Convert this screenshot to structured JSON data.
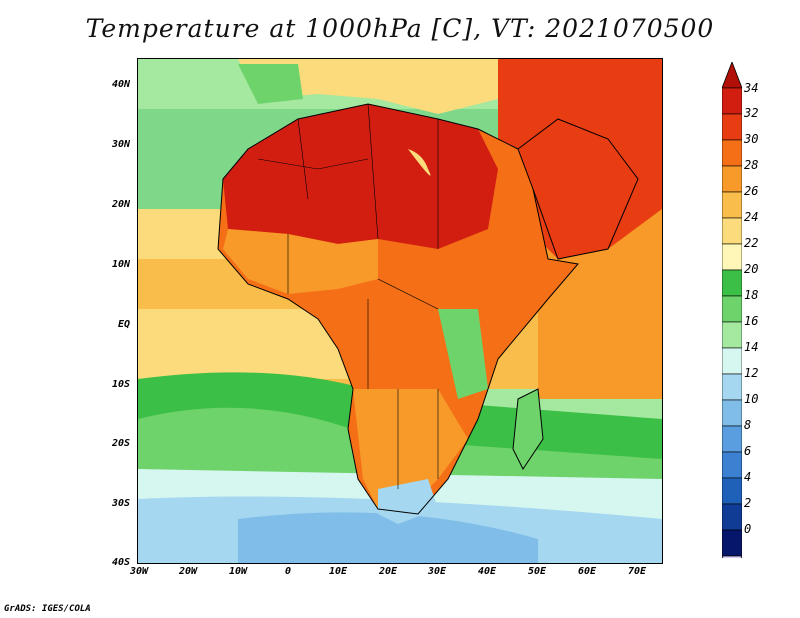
{
  "title": "Temperature at 1000hPa [C], VT: 2021070500",
  "credit": "GrADS: IGES/COLA",
  "lat_labels": [
    "40N",
    "30N",
    "20N",
    "10N",
    "EQ",
    "10S",
    "20S",
    "30S",
    "40S"
  ],
  "lon_labels": [
    "30W",
    "20W",
    "10W",
    "0",
    "10E",
    "20E",
    "30E",
    "40E",
    "50E",
    "60E",
    "70E"
  ],
  "colorbar": {
    "labels": [
      "34",
      "32",
      "30",
      "28",
      "26",
      "24",
      "22",
      "20",
      "18",
      "16",
      "14",
      "12",
      "10",
      "8",
      "6",
      "4",
      "2",
      "0"
    ],
    "colors": [
      "#d21e10",
      "#e83c12",
      "#f46f16",
      "#f89a2a",
      "#f9bd4b",
      "#fbdb7c",
      "#fff7b8",
      "#3cbf46",
      "#6fd36b",
      "#a5e8a0",
      "#d6f6f0",
      "#a5d8f0",
      "#80bde8",
      "#5a9ee0",
      "#3c80d2",
      "#1f60b8",
      "#103c96",
      "#06166a"
    ],
    "top_triangle_color": "#b01008",
    "bottom_triangle_color": "#d8d0f4"
  },
  "map": {
    "ocean_bands": [
      {
        "label": "north-atlantic",
        "color": "#a5e8a0"
      },
      {
        "label": "tropical-band",
        "color": "#f9bd4b"
      },
      {
        "label": "south-band",
        "color": "#3cbf46"
      },
      {
        "label": "cool-band",
        "color": "#d6f6f0"
      },
      {
        "label": "cold-band",
        "color": "#80bde8"
      }
    ]
  }
}
